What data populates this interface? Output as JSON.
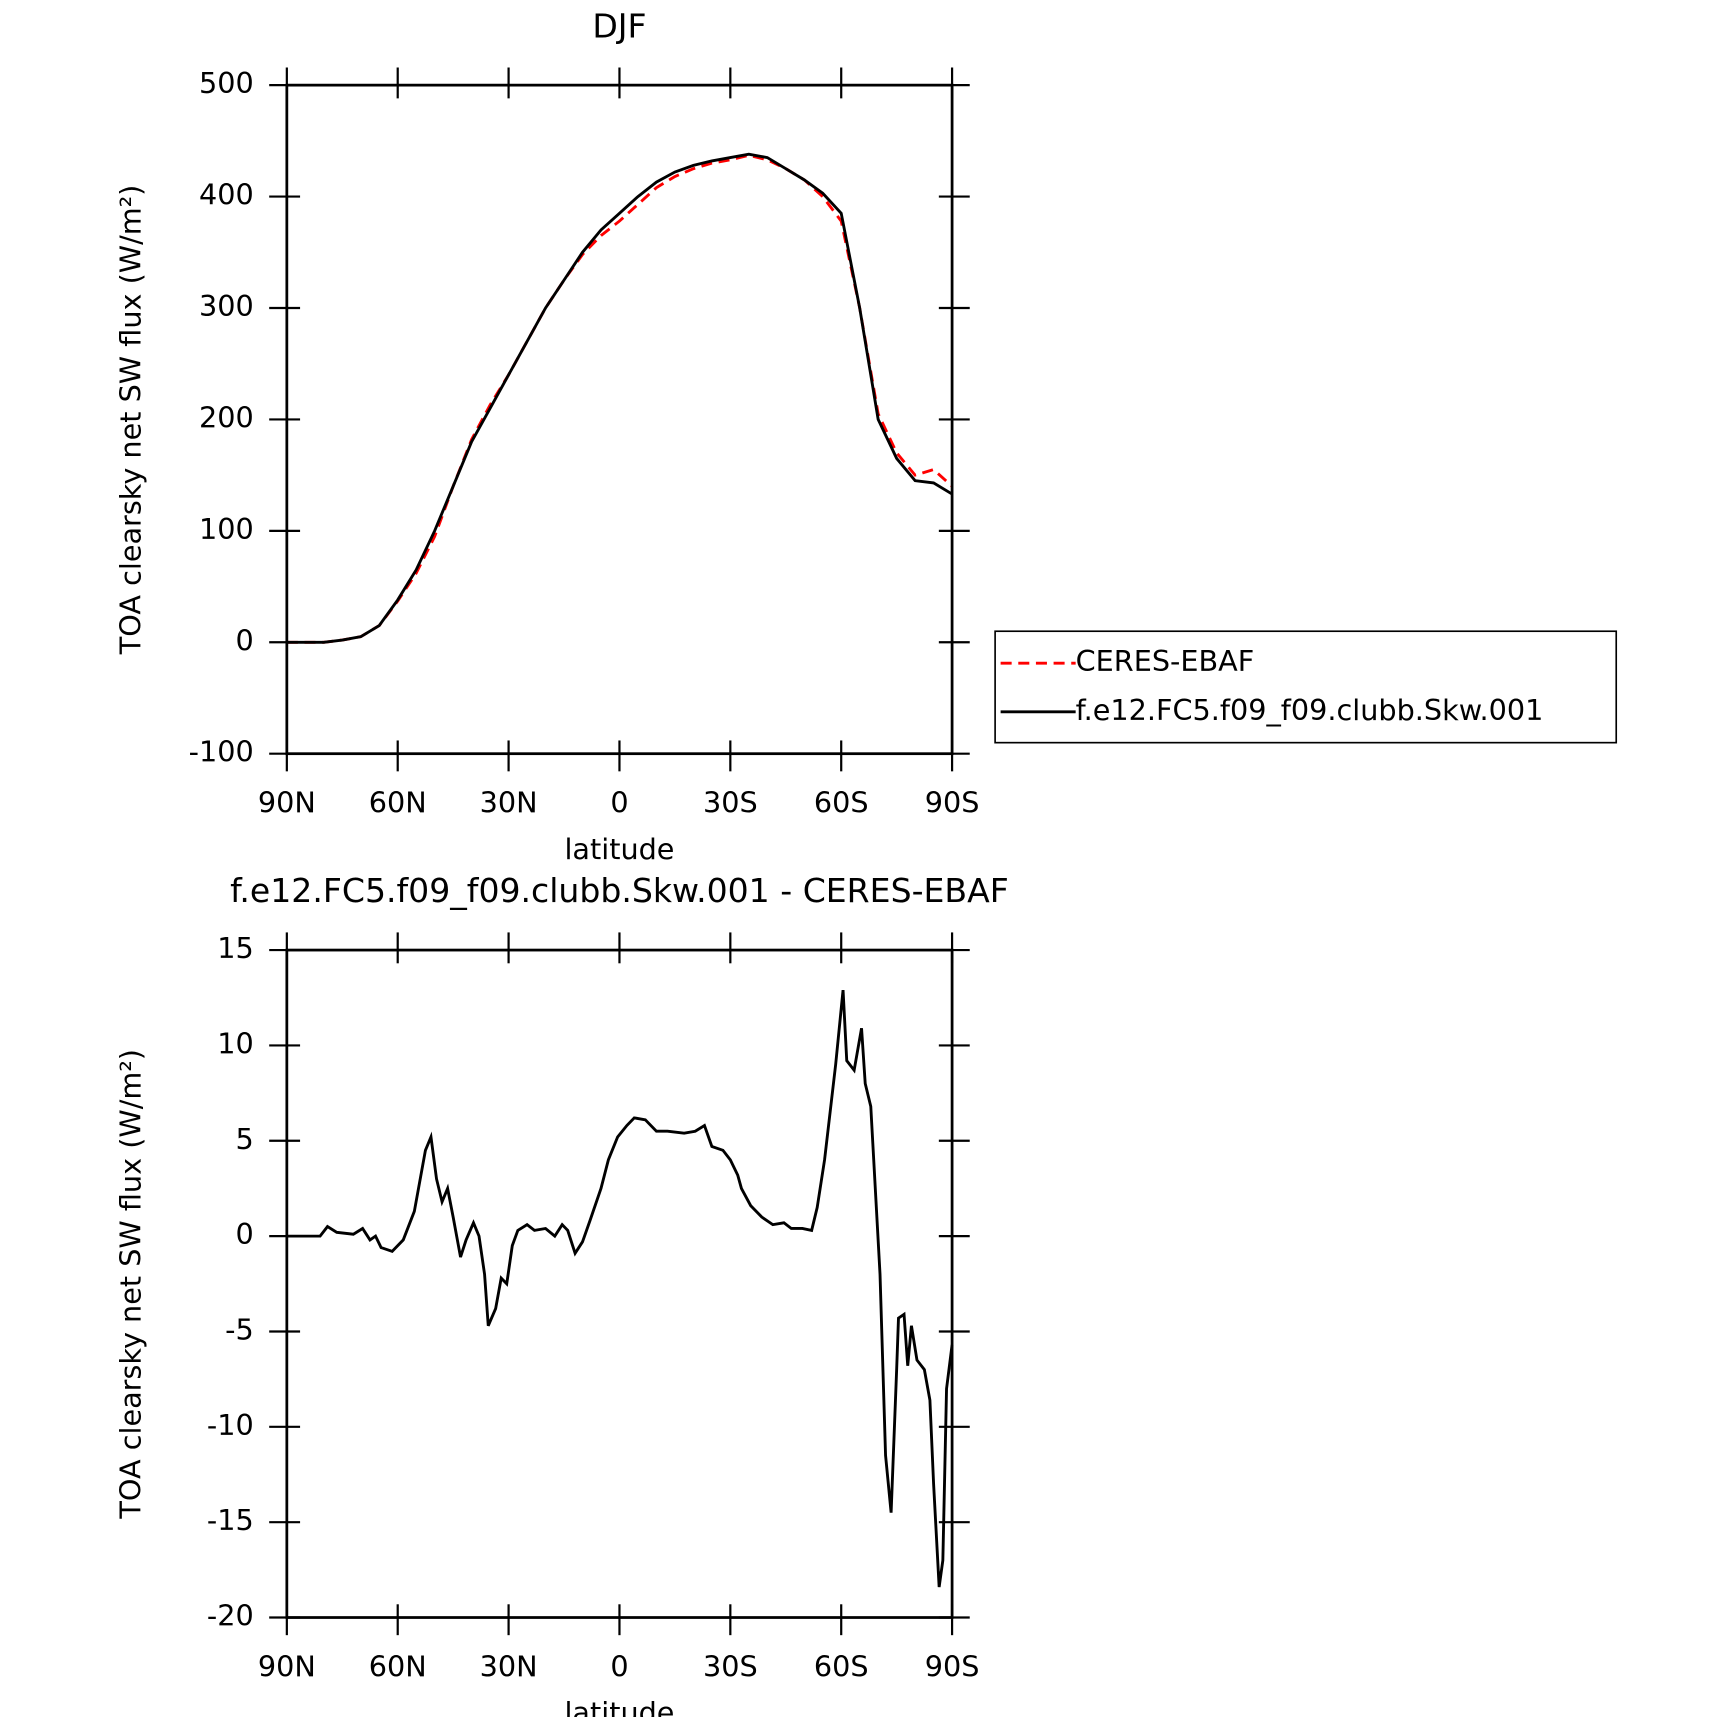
{
  "chart_data": [
    {
      "type": "line",
      "title": "DJF",
      "ylabel": "TOA clearsky net SW flux (W/m²)",
      "xlabel": "latitude",
      "x": [
        90,
        85,
        80,
        75,
        70,
        65,
        60,
        55,
        50,
        45,
        40,
        35,
        30,
        25,
        20,
        15,
        10,
        5,
        0,
        -5,
        -10,
        -15,
        -20,
        -25,
        -30,
        -35,
        -40,
        -45,
        -50,
        -55,
        -60,
        -65,
        -70,
        -75,
        -80,
        -85,
        -90
      ],
      "series": [
        {
          "name": "CERES-EBAF",
          "color": "#ff0000",
          "dash": "dashed",
          "values": [
            0,
            0,
            0,
            2,
            5,
            15,
            37,
            62,
            95,
            140,
            182,
            213,
            240,
            270,
            300,
            325,
            348,
            365,
            378,
            393,
            408,
            418,
            425,
            430,
            433,
            437,
            433,
            425,
            415,
            400,
            378,
            300,
            205,
            170,
            150,
            155,
            140
          ]
        },
        {
          "name": "f.e12.FC5.f09_f09.clubb.Skw.001",
          "color": "#000000",
          "dash": "solid",
          "values": [
            0,
            0,
            0,
            2,
            5,
            15,
            38,
            65,
            100,
            140,
            180,
            210,
            240,
            270,
            300,
            325,
            350,
            370,
            385,
            400,
            413,
            422,
            428,
            432,
            435,
            438,
            435,
            425,
            415,
            403,
            385,
            300,
            200,
            165,
            145,
            143,
            133
          ]
        }
      ],
      "xlim": [
        90,
        -90
      ],
      "xticks": [
        {
          "value": 90,
          "label": "90N"
        },
        {
          "value": 60,
          "label": "60N"
        },
        {
          "value": 30,
          "label": "30N"
        },
        0,
        {
          "value": -30,
          "label": "30S"
        },
        {
          "value": -60,
          "label": "60S"
        },
        {
          "value": -90,
          "label": "90S"
        }
      ],
      "ylim": [
        -100,
        500
      ],
      "yticks": [
        -100,
        0,
        100,
        200,
        300,
        400,
        500
      ],
      "legend": "right"
    },
    {
      "type": "line",
      "title": "f.e12.FC5.f09_f09.clubb.Skw.001 - CERES-EBAF",
      "ylabel": "TOA clearsky net SW flux (W/m²)",
      "xlabel": "latitude",
      "x": [
        90,
        81,
        79,
        76.5,
        72,
        69.5,
        67.5,
        66,
        64.5,
        61.5,
        58.5,
        55.5,
        52.5,
        51,
        49.5,
        48,
        46.5,
        45,
        43,
        41.5,
        39.5,
        38,
        36.5,
        35.5,
        33.5,
        32,
        30.5,
        29,
        27.5,
        25,
        23,
        20,
        17.5,
        15.5,
        14,
        12,
        10,
        8,
        5,
        3,
        0.5,
        -2,
        -4,
        -7,
        -10,
        -13,
        -17.5,
        -20.5,
        -23,
        -25,
        -28,
        -30,
        -32,
        -33,
        -35.5,
        -38.5,
        -41.5,
        -44.5,
        -46.5,
        -49.5,
        -52,
        -53.5,
        -55.5,
        -58.5,
        -60.5,
        -61.5,
        -63.5,
        -65.5,
        -66.5,
        -68,
        -70.5,
        -72,
        -73.5,
        -75,
        -75.5,
        -77,
        -78,
        -79,
        -80.5,
        -82.5,
        -84,
        -85,
        -86.5,
        -87.5,
        -88.5,
        -90
      ],
      "series": [
        {
          "name": "f.e12.FC5.f09_f09.clubb.Skw.001 - CERES-EBAF",
          "color": "#000000",
          "dash": "solid",
          "values": [
            0,
            0,
            0.5,
            0.2,
            0.1,
            0.4,
            -0.2,
            0,
            -0.6,
            -0.8,
            -0.2,
            1.3,
            4.5,
            5.2,
            3,
            1.8,
            2.5,
            1,
            -1.1,
            -0.2,
            0.7,
            0,
            -2,
            -4.7,
            -3.8,
            -2.2,
            -2.5,
            -0.5,
            0.3,
            0.6,
            0.3,
            0.4,
            0,
            0.6,
            0.3,
            -0.9,
            -0.3,
            0.8,
            2.5,
            4,
            5.2,
            5.8,
            6.2,
            6.1,
            5.5,
            5.5,
            5.4,
            5.5,
            5.8,
            4.7,
            4.5,
            4,
            3.2,
            2.5,
            1.6,
            1,
            0.6,
            0.7,
            0.4,
            0.4,
            0.3,
            1.5,
            4,
            9,
            12.9,
            9.2,
            8.7,
            10.9,
            8,
            6.8,
            -2,
            -11.5,
            -14.5,
            -7,
            -4.3,
            -4.1,
            -6.8,
            -4.7,
            -6.5,
            -7,
            -8.6,
            -13,
            -18.4,
            -17,
            -8,
            -5.7
          ]
        }
      ],
      "xlim": [
        90,
        -90
      ],
      "xticks": [
        {
          "value": 90,
          "label": "90N"
        },
        {
          "value": 60,
          "label": "60N"
        },
        {
          "value": 30,
          "label": "30N"
        },
        0,
        {
          "value": -30,
          "label": "30S"
        },
        {
          "value": -60,
          "label": "60S"
        },
        {
          "value": -90,
          "label": "90S"
        }
      ],
      "ylim": [
        -20,
        15
      ],
      "yticks": [
        -20,
        -15,
        -10,
        -5,
        0,
        5,
        10,
        15
      ]
    }
  ]
}
